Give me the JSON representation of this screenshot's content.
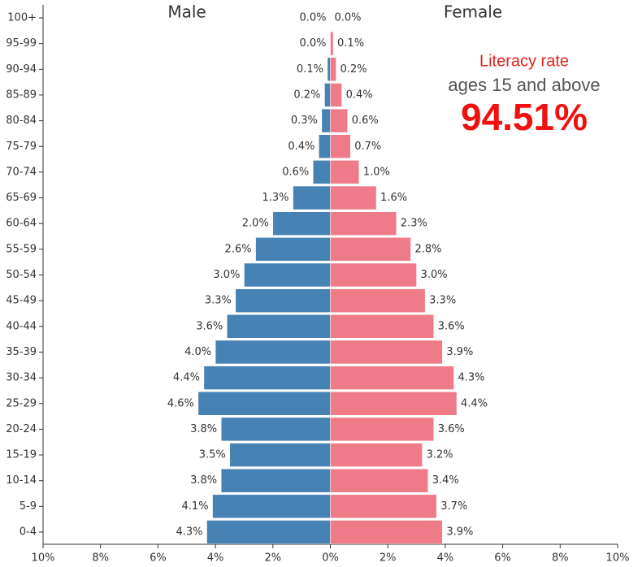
{
  "chart_data": {
    "type": "pyramid",
    "categories": [
      "100+",
      "95-99",
      "90-94",
      "85-89",
      "80-84",
      "75-79",
      "70-74",
      "65-69",
      "60-64",
      "55-59",
      "50-54",
      "45-49",
      "40-44",
      "35-39",
      "30-34",
      "25-29",
      "20-24",
      "15-19",
      "10-14",
      "5-9",
      "0-4"
    ],
    "series": [
      {
        "name": "Male",
        "color": "#4682b4",
        "values": [
          0.0,
          0.0,
          0.1,
          0.2,
          0.3,
          0.4,
          0.6,
          1.3,
          2.0,
          2.6,
          3.0,
          3.3,
          3.6,
          4.0,
          4.4,
          4.6,
          3.8,
          3.5,
          3.8,
          4.1,
          4.3
        ],
        "value_labels": [
          "0.0%",
          "0.0%",
          "0.1%",
          "0.2%",
          "0.3%",
          "0.4%",
          "0.6%",
          "1.3%",
          "2.0%",
          "2.6%",
          "3.0%",
          "3.3%",
          "3.6%",
          "4.0%",
          "4.4%",
          "4.6%",
          "3.8%",
          "3.5%",
          "3.8%",
          "4.1%",
          "4.3%"
        ]
      },
      {
        "name": "Female",
        "color": "#ef7b88",
        "values": [
          0.0,
          0.1,
          0.2,
          0.4,
          0.6,
          0.7,
          1.0,
          1.6,
          2.3,
          2.8,
          3.0,
          3.3,
          3.6,
          3.9,
          4.3,
          4.4,
          3.6,
          3.2,
          3.4,
          3.7,
          3.9
        ],
        "value_labels": [
          "0.0%",
          "0.1%",
          "0.2%",
          "0.4%",
          "0.6%",
          "0.7%",
          "1.0%",
          "1.6%",
          "2.3%",
          "2.8%",
          "3.0%",
          "3.3%",
          "3.6%",
          "3.9%",
          "4.3%",
          "4.4%",
          "3.6%",
          "3.2%",
          "3.4%",
          "3.7%",
          "3.9%"
        ]
      }
    ],
    "xlim": [
      -10,
      10
    ],
    "xticks": [
      {
        "value": -10,
        "label": "10%"
      },
      {
        "value": -8,
        "label": "8%"
      },
      {
        "value": -6,
        "label": "6%"
      },
      {
        "value": -4,
        "label": "4%"
      },
      {
        "value": -2,
        "label": "2%"
      },
      {
        "value": 0,
        "label": "0%"
      },
      {
        "value": 2,
        "label": "2%"
      },
      {
        "value": 4,
        "label": "4%"
      },
      {
        "value": 6,
        "label": "6%"
      },
      {
        "value": 8,
        "label": "8%"
      },
      {
        "value": 10,
        "label": "10%"
      }
    ],
    "annotations": [
      "Literacy rate",
      "ages 15 and above",
      "94.51%"
    ]
  }
}
